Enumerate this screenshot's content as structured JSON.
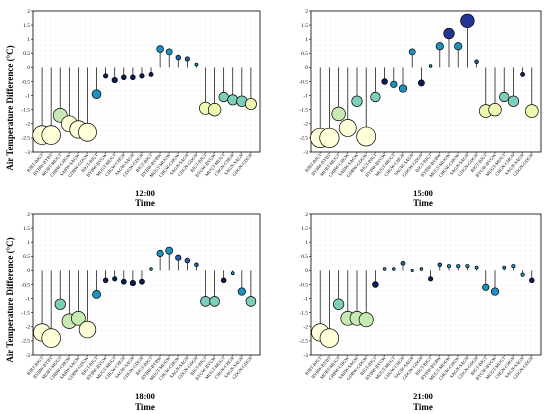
{
  "figure": {
    "ylabel": "Air Temperature Difference (°C)",
    "xlabel": "Time"
  },
  "chart_data": [
    {
      "type": "scatter",
      "panel_label": "12:00",
      "xlabel": "Time",
      "ylabel": "Air Temperature Difference (°C)",
      "ylim": [
        -3,
        2
      ],
      "yticks": [
        -3,
        -2.5,
        -2,
        -1.5,
        -1,
        -0.5,
        0,
        0.5,
        1,
        1.5,
        2
      ],
      "grid": true,
      "categories": [
        "BJBT-BJGT",
        "BYBW-BYBT",
        "MUBT-MUGT",
        "CHBW-CHGW",
        "SABW-SAGW",
        "GDBW-GDGW",
        "BJGT-BJGT",
        "BYBW-BYGW",
        "MUGT-MUGT",
        "CHGW-CHGN",
        "SAGW-SAGN",
        "GDGW-GDGN",
        "BJGT-BJGT",
        "BYBW-BYBW",
        "MUGT-MUGW",
        "CHGW-CHGW",
        "SAGN-SAGN",
        "GDGN-GDGN",
        "BJGT-BJGT",
        "BYGW-BYGW",
        "MUGT-MUGT",
        "CHGN-CHGN",
        "SAGN-SAGN",
        "GDGN-GDGN"
      ],
      "values": [
        -2.4,
        -2.4,
        -1.7,
        -2.0,
        -2.2,
        -2.3,
        -0.95,
        -0.3,
        -0.45,
        -0.35,
        -0.35,
        -0.3,
        -0.25,
        0.65,
        0.55,
        0.35,
        0.3,
        0.1,
        -1.45,
        -1.5,
        -1.05,
        -1.15,
        -1.2,
        -1.3
      ]
    },
    {
      "type": "scatter",
      "panel_label": "15:00",
      "xlabel": "Time",
      "ylabel": "Air Temperature Difference (°C)",
      "ylim": [
        -3,
        2
      ],
      "yticks": [
        -3,
        -2.5,
        -2,
        -1.5,
        -1,
        -0.5,
        0,
        0.5,
        1,
        1.5,
        2
      ],
      "grid": true,
      "categories": [
        "BJBT-BJGT",
        "BYBW-BYBT",
        "MUBT-MUGT",
        "CHBW-CHGW",
        "SABW-SAGW",
        "GDBW-GDGW",
        "BJGT-BJGT",
        "BYBW-BYGW",
        "MUGT-MUGT",
        "CHGW-CHGN",
        "SAGW-SAGN",
        "GDGW-GDGN",
        "BJGT-BJGT",
        "BYBW-BYBW",
        "MUGT-MUGW",
        "CHGW-CHGW",
        "SAGN-SAGN",
        "GDGN-GDGN",
        "BJGT-BJGT",
        "BYGW-BYGW",
        "MUGT-MUGT",
        "CHGN-CHGN",
        "SAGN-SAGN",
        "GDGN-GDGN"
      ],
      "values": [
        -2.5,
        -2.5,
        -1.65,
        -2.15,
        -1.2,
        -2.45,
        -1.05,
        -0.5,
        -0.6,
        -0.75,
        0.55,
        -0.55,
        0.05,
        0.75,
        1.2,
        0.75,
        1.65,
        0.2,
        -1.55,
        -1.5,
        -1.05,
        -1.2,
        -0.25,
        -1.55
      ]
    },
    {
      "type": "scatter",
      "panel_label": "18:00",
      "xlabel": "Time",
      "ylabel": "Air Temperature Difference (°C)",
      "ylim": [
        -3,
        2
      ],
      "yticks": [
        -3,
        -2.5,
        -2,
        -1.5,
        -1,
        -0.5,
        0,
        0.5,
        1,
        1.5,
        2
      ],
      "grid": true,
      "categories": [
        "BJBT-BJGT",
        "BYBW-BYBT",
        "MUBT-MUGT",
        "CHBW-CHGW",
        "SABW-SAGW",
        "GDBW-GDGW",
        "BJGT-BJGT",
        "BYBW-BYGW",
        "MUGT-MUGT",
        "CHGW-CHGN",
        "SAGW-SAGN",
        "GDGW-GDGN",
        "BJGT-BJGT",
        "BYBW-BYBW",
        "MUGT-MUGW",
        "CHGW-CHGW",
        "SAGN-SAGN",
        "GDGN-GDGN",
        "BJGT-BJGT",
        "BYGW-BYGW",
        "MUGT-MUGT",
        "CHGN-CHGN",
        "SAGN-SAGN",
        "GDGN-GDGN"
      ],
      "values": [
        -2.2,
        -2.4,
        -1.2,
        -1.8,
        -1.7,
        -2.1,
        -0.85,
        -0.35,
        -0.3,
        -0.4,
        -0.45,
        -0.4,
        0.05,
        0.6,
        0.7,
        0.45,
        0.35,
        0.2,
        -1.1,
        -1.1,
        -0.35,
        -0.1,
        -0.75,
        -1.1
      ]
    },
    {
      "type": "scatter",
      "panel_label": "21:00",
      "xlabel": "Time",
      "ylabel": "Air Temperature Difference (°C)",
      "ylim": [
        -3,
        2
      ],
      "yticks": [
        -3,
        -2.5,
        -2,
        -1.5,
        -1,
        -0.5,
        0,
        0.5,
        1,
        1.5,
        2
      ],
      "grid": true,
      "categories": [
        "BJBT-BJGT",
        "BYBW-BYBT",
        "MUBT-MUGT",
        "CHBW-CHGW",
        "SABW-SAGW",
        "GDBW-GDGW",
        "BJGT-BJGT",
        "BYBW-BYGW",
        "MUGT-MUGT",
        "CHGW-CHGN",
        "SAGW-SAGN",
        "GDGW-GDGN",
        "BJGT-BJGT",
        "BYBW-BYBW",
        "MUGT-MUGW",
        "CHGW-CHGW",
        "SAGN-SAGN",
        "GDGN-GDGN",
        "BJGT-BJGT",
        "BYGW-BYGW",
        "MUGT-MUGT",
        "CHGN-CHGN",
        "SAGN-SAGN",
        "GDGN-GDGN"
      ],
      "values": [
        -2.2,
        -2.4,
        -1.2,
        -1.7,
        -1.7,
        -1.75,
        -0.5,
        0.05,
        0.05,
        0.25,
        0.0,
        0.05,
        -0.3,
        0.2,
        0.15,
        0.15,
        0.15,
        0.1,
        -0.6,
        -0.75,
        0.1,
        0.15,
        -0.15,
        -0.35
      ]
    }
  ]
}
